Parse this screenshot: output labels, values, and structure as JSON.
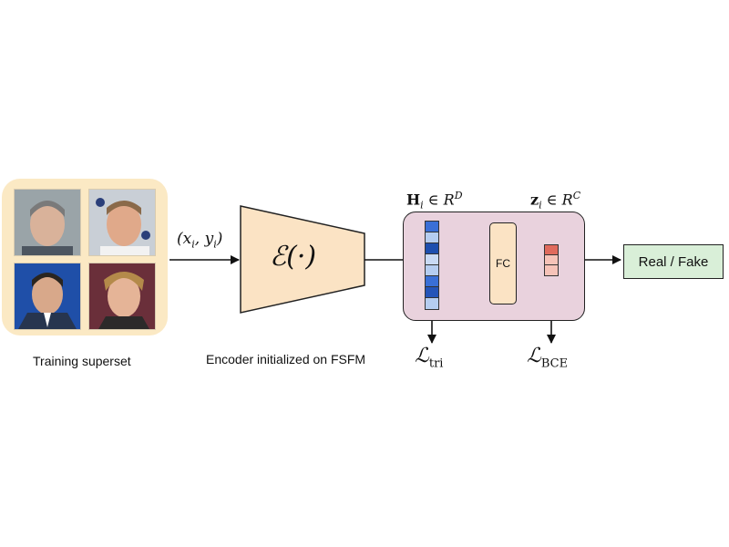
{
  "superset": {
    "caption": "Training superset",
    "faces": [
      "face-1",
      "face-2",
      "face-3",
      "face-4"
    ]
  },
  "input_label": {
    "base": "(x",
    "i": "i",
    "comma": ", y",
    "close": ")"
  },
  "encoder": {
    "symbol": "ℰ(·)",
    "caption": "Encoder initialized on FSFM"
  },
  "feature_label": {
    "var": "H",
    "sub": "i",
    "in": " ∈ R",
    "sup": "D"
  },
  "logit_label": {
    "var": "z",
    "sub": "i",
    "in": " ∈ R",
    "sup": "C"
  },
  "fc": {
    "label": "FC"
  },
  "output": {
    "label": "Real / Fake"
  },
  "losses": {
    "triplet": {
      "symbol": "ℒ",
      "sub": "tri"
    },
    "bce": {
      "symbol": "ℒ",
      "sub": "BCE"
    }
  },
  "colors": {
    "superset_bg": "#fbe9c4",
    "encoder_fill": "#fbe3c4",
    "head_bg": "#e9d2dd",
    "output_bg": "#d9efd8",
    "feature_vector": [
      "#3a6fd6",
      "#b5cdf0",
      "#1e4fae",
      "#c9daf4",
      "#b5cdf0",
      "#3a6fd6",
      "#2454b8",
      "#b5cdf0"
    ],
    "logit_vector": [
      "#e06b5d",
      "#f6c3b8",
      "#f6c3b8"
    ]
  }
}
